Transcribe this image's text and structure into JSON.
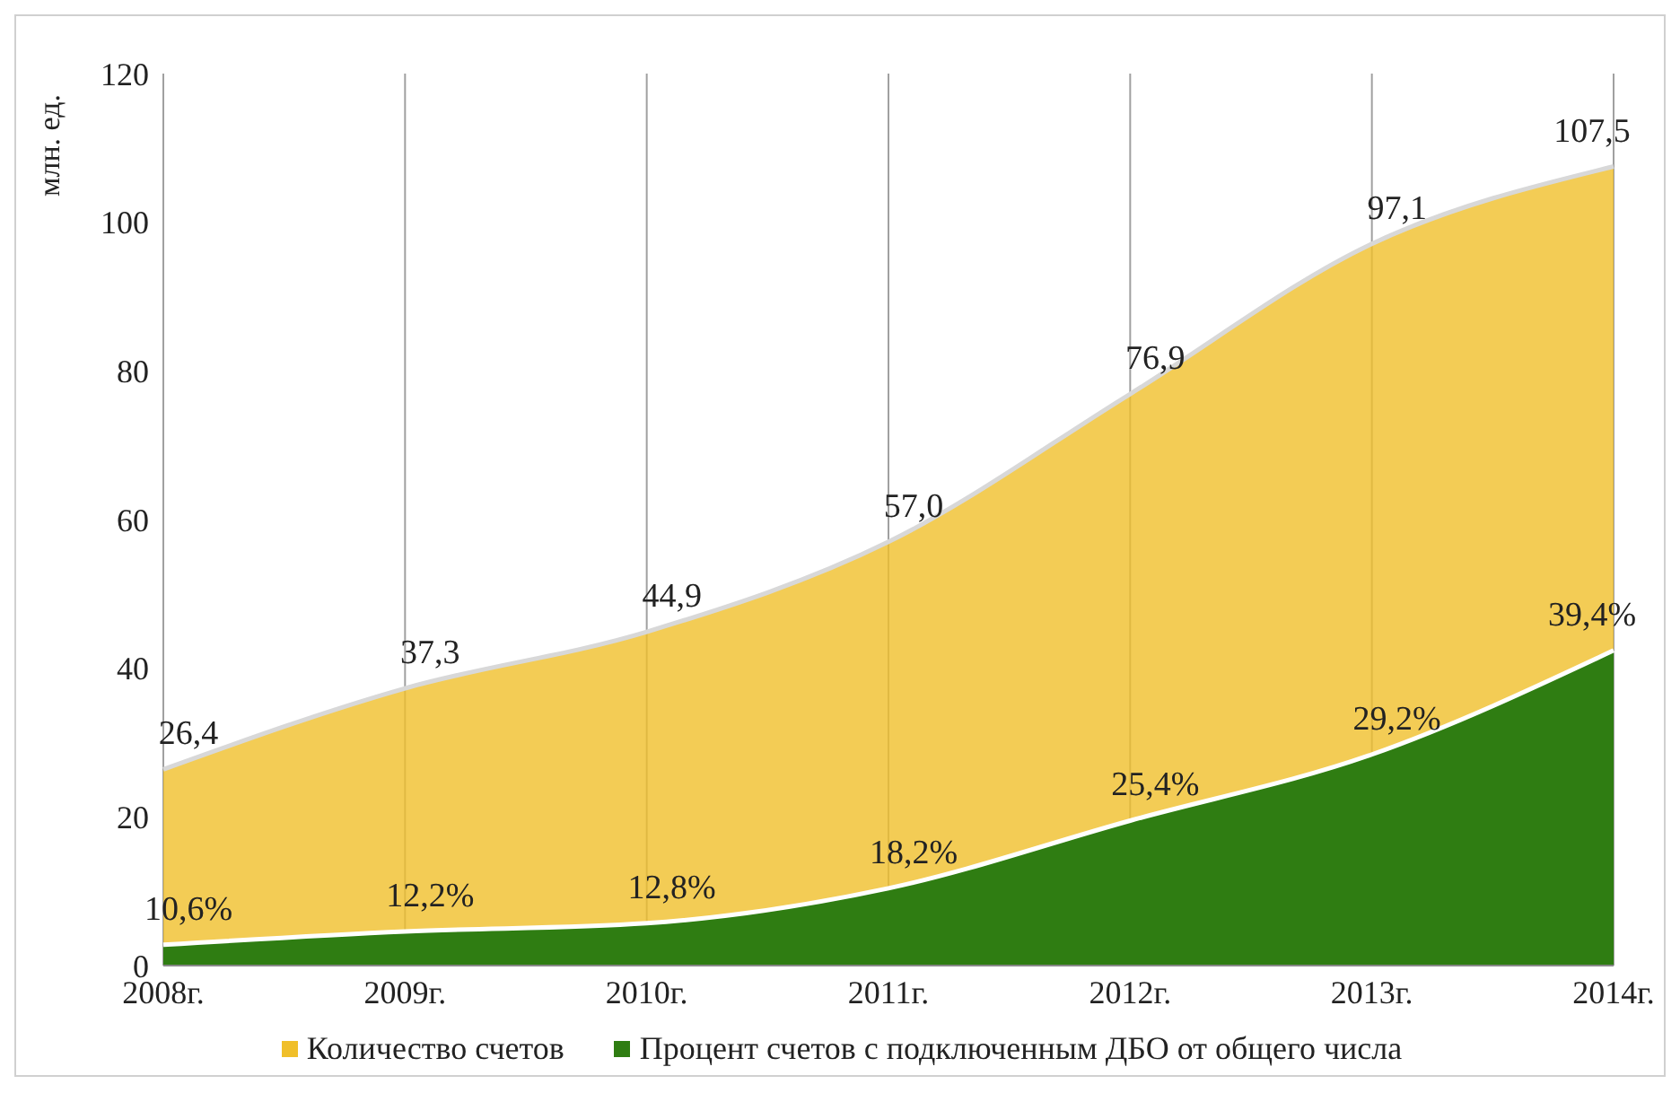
{
  "chart_data": {
    "type": "area",
    "ylabel": "млн. ед.",
    "categories": [
      "2008г.",
      "2009г.",
      "2010г.",
      "2011г.",
      "2012г.",
      "2013г.",
      "2014г."
    ],
    "series": [
      {
        "name": "Количество  счетов",
        "color": "#f0bf2a",
        "values": [
          26.4,
          37.3,
          44.9,
          57.0,
          76.9,
          97.1,
          107.5
        ],
        "value_labels": [
          "26,4",
          "37,3",
          "44,9",
          "57,0",
          "76,9",
          "97,1",
          "107,5"
        ]
      },
      {
        "name": "Процент счетов с подключенным ДБО от общего числа",
        "color": "#2f7d12",
        "values": [
          2.8,
          4.6,
          5.7,
          10.4,
          19.5,
          28.4,
          42.4
        ]
      }
    ],
    "annotations": [
      {
        "text": "10,6%",
        "x": "2008г.",
        "y": 2.8
      },
      {
        "text": "12,2%",
        "x": "2009г.",
        "y": 4.6
      },
      {
        "text": "12,8%",
        "x": "2010г.",
        "y": 5.7
      },
      {
        "text": "18,2%",
        "x": "2011г.",
        "y": 10.4
      },
      {
        "text": "25,4%",
        "x": "2012г.",
        "y": 19.5
      },
      {
        "text": "29,2%",
        "x": "2013г.",
        "y": 28.4
      },
      {
        "text": "39,4%",
        "x": "2014г.",
        "y": 42.4
      }
    ],
    "ylim": [
      0,
      120
    ],
    "yticks": [
      0,
      20,
      40,
      60,
      80,
      100,
      120
    ],
    "grid": "x",
    "legend": "bottom"
  }
}
